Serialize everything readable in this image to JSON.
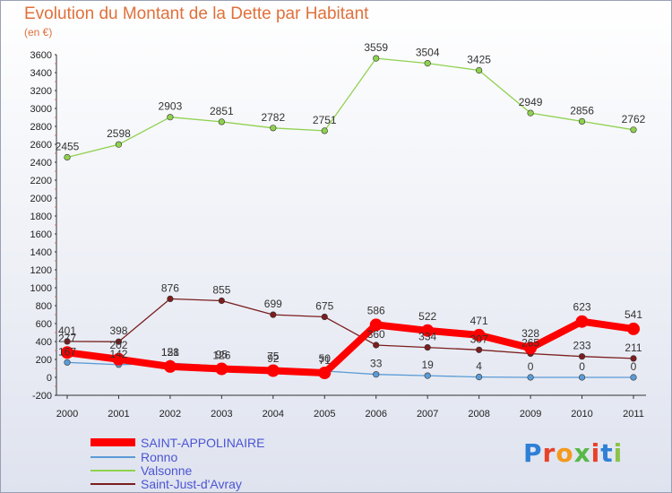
{
  "chart_data": {
    "type": "line",
    "title": "Evolution du Montant de la Dette par Habitant",
    "subtitle": "(en €)",
    "xlabel": "",
    "ylabel": "",
    "ylim": [
      -200,
      3600
    ],
    "ytick_step": 200,
    "grid": false,
    "legend": "bottom-left",
    "categories": [
      "2000",
      "2001",
      "2002",
      "2003",
      "2004",
      "2005",
      "2006",
      "2007",
      "2008",
      "2009",
      "2010",
      "2011"
    ],
    "series": [
      {
        "name": "SAINT-APPOLINAIRE",
        "color": "#ff0000",
        "values": [
          277,
          202,
          121,
          95,
          75,
          50,
          586,
          522,
          471,
          328,
          623,
          541
        ],
        "labels": [
          "277",
          "202",
          "121",
          "95",
          "75",
          "50",
          "586",
          "522",
          "471",
          "328",
          "623",
          "541"
        ]
      },
      {
        "name": "Ronno",
        "color": "#5b9bd5",
        "values": [
          167,
          142,
          158,
          126,
          92,
          71,
          33,
          19,
          4,
          0,
          0,
          0
        ],
        "labels": [
          "167",
          "142",
          "158",
          "126",
          "92",
          "71",
          "33",
          "19",
          "4",
          "0",
          "0",
          "0"
        ]
      },
      {
        "name": "Valsonne",
        "color": "#8fd14f",
        "values": [
          2455,
          2598,
          2903,
          2851,
          2782,
          2751,
          3559,
          3504,
          3425,
          2949,
          2856,
          2762
        ],
        "labels": [
          "2455",
          "2598",
          "2903",
          "2851",
          "2782",
          "2751",
          "3559",
          "3504",
          "3425",
          "2949",
          "2856",
          "2762"
        ]
      },
      {
        "name": "Saint-Just-d'Avray",
        "color": "#7a1e1e",
        "values": [
          401,
          398,
          876,
          855,
          699,
          675,
          360,
          334,
          307,
          265,
          233,
          211
        ],
        "labels": [
          "401",
          "398",
          "876",
          "855",
          "699",
          "675",
          "360",
          "334",
          "307",
          "265",
          "233",
          "211"
        ]
      }
    ]
  },
  "branding": {
    "logo_text": "Proxiti",
    "logo_colors": [
      "#2f7fd6",
      "#e8422a",
      "#f39a1d",
      "#58b847",
      "#e8422a",
      "#2f7fd6",
      "#8bc34a"
    ]
  }
}
